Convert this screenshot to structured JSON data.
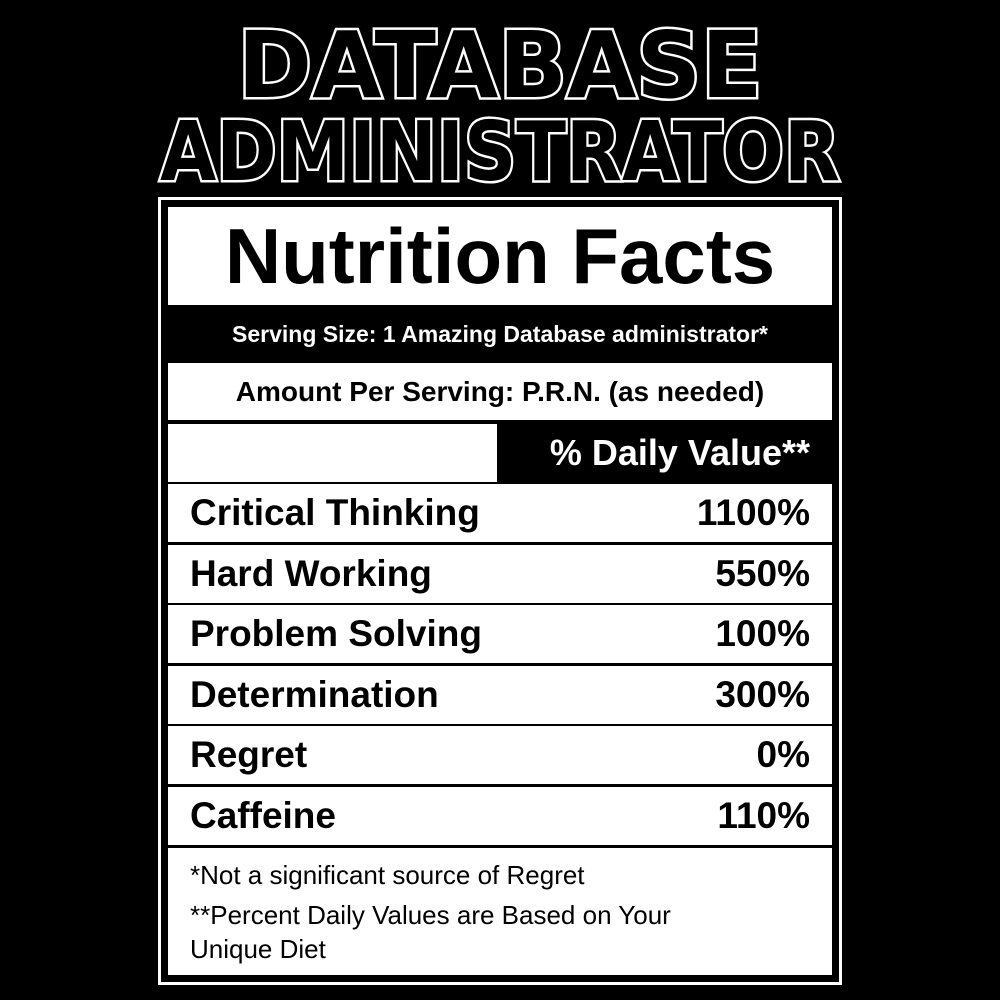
{
  "header": {
    "line1": "DATABASE",
    "line2": "ADMINISTRATOR"
  },
  "label": {
    "title": "Nutrition Facts",
    "serving_size": "Serving Size: 1 Amazing Database administrator*",
    "amount_per_serving": "Amount Per Serving: P.R.N. (as needed)",
    "daily_value_header": "% Daily Value**",
    "rows": [
      {
        "name": "Critical Thinking",
        "value": "1100%"
      },
      {
        "name": "Hard Working",
        "value": "550%"
      },
      {
        "name": "Problem Solving",
        "value": "100%"
      },
      {
        "name": "Determination",
        "value": "300%"
      },
      {
        "name": "Regret",
        "value": "0%"
      },
      {
        "name": "Caffeine",
        "value": "110%"
      }
    ],
    "footnotes": [
      "*Not a significant source of Regret",
      "**Percent Daily Values are Based on Your Unique Diet"
    ]
  }
}
